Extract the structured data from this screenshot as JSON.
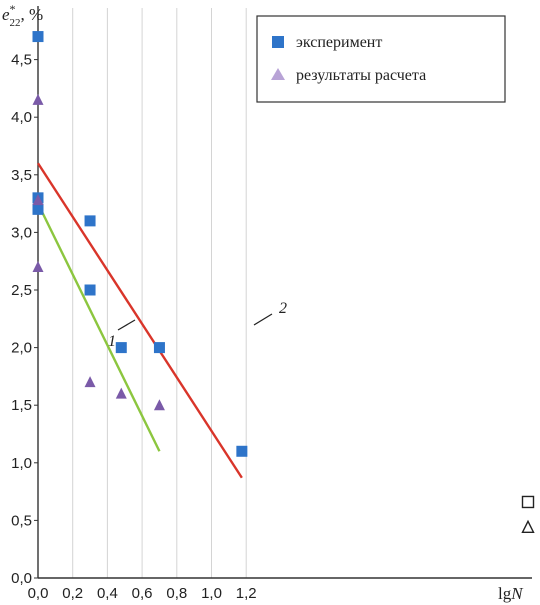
{
  "chart_data": {
    "type": "scatter",
    "ylabel_main": "e",
    "ylabel_sup": "*",
    "ylabel_sub": "22",
    "ylabel_unit": ", %",
    "xlabel_main": "lg",
    "xlabel_italic": "N",
    "xlim": [
      0,
      1.4
    ],
    "ylim": [
      0,
      5.0
    ],
    "x_ticks": [
      "0,0",
      "0,2",
      "0,4",
      "0,6",
      "0,8",
      "1,0",
      "1,2"
    ],
    "x_tick_values": [
      0,
      0.2,
      0.4,
      0.6,
      0.8,
      1.0,
      1.2
    ],
    "y_ticks": [
      "0,0",
      "0,5",
      "1,0",
      "1,5",
      "2,0",
      "2,5",
      "3,0",
      "3,5",
      "4,0",
      "4,5"
    ],
    "y_tick_values": [
      0,
      0.5,
      1.0,
      1.5,
      2.0,
      2.5,
      3.0,
      3.5,
      4.0,
      4.5
    ],
    "grid": "vertical",
    "legend_position": "top-right",
    "series": [
      {
        "name": "эксперимент",
        "marker": "square",
        "color": "#2e74c9",
        "points": [
          [
            0,
            4.7
          ],
          [
            0,
            3.3
          ],
          [
            0,
            3.2
          ],
          [
            0.3,
            3.1
          ],
          [
            0.3,
            2.5
          ],
          [
            0.48,
            2.0
          ],
          [
            0.7,
            2.0
          ],
          [
            1.175,
            1.1
          ]
        ]
      },
      {
        "name": "результаты расчета",
        "marker": "triangle",
        "color": "#7a5aa8",
        "legend_color": "#b8a3d6",
        "points": [
          [
            0,
            4.15
          ],
          [
            0,
            3.28
          ],
          [
            0,
            2.7
          ],
          [
            0.3,
            1.7
          ],
          [
            0.48,
            1.6
          ],
          [
            0.7,
            1.5
          ]
        ]
      }
    ],
    "lines": [
      {
        "label": "1",
        "color": "#8cc63f",
        "from": [
          0,
          3.25
        ],
        "to": [
          0.7,
          1.1
        ]
      },
      {
        "label": "2",
        "color": "#d9352a",
        "from": [
          0,
          3.6
        ],
        "to": [
          1.175,
          0.87
        ]
      }
    ],
    "extra_markers": [
      {
        "marker": "square-open",
        "x": 1.41,
        "y": 0.66
      },
      {
        "marker": "triangle-open",
        "x": 1.41,
        "y": 0.44
      }
    ]
  }
}
